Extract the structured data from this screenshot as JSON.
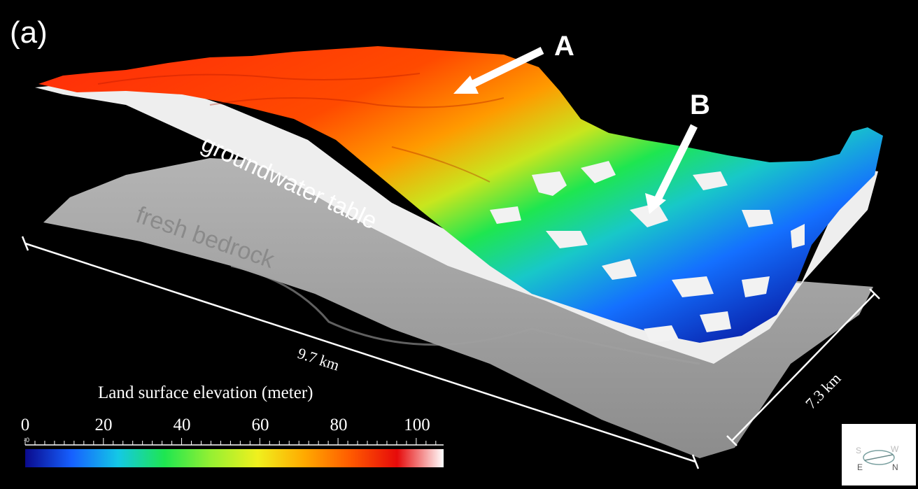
{
  "panel_label": "(a)",
  "annotations": {
    "a": "A",
    "b": "B"
  },
  "surfaces": {
    "groundwater": "groundwater table",
    "bedrock": "fresh bedrock"
  },
  "dimensions": {
    "length": "9.7 km",
    "width": "7.3 km"
  },
  "colorbar": {
    "title": "Land surface elevation (meter)",
    "ticks": [
      "0",
      "20",
      "40",
      "60",
      "80",
      "100"
    ],
    "minor_label": "-0",
    "range": [
      0,
      107
    ],
    "colors": [
      "#0a0a8c",
      "#1660ff",
      "#14c8e6",
      "#1ee650",
      "#96f032",
      "#f0f01e",
      "#ffaa00",
      "#ff5a00",
      "#e60a0a",
      "#ffffff"
    ]
  },
  "compass": {
    "letters": [
      "S",
      "W",
      "E",
      "N"
    ]
  }
}
